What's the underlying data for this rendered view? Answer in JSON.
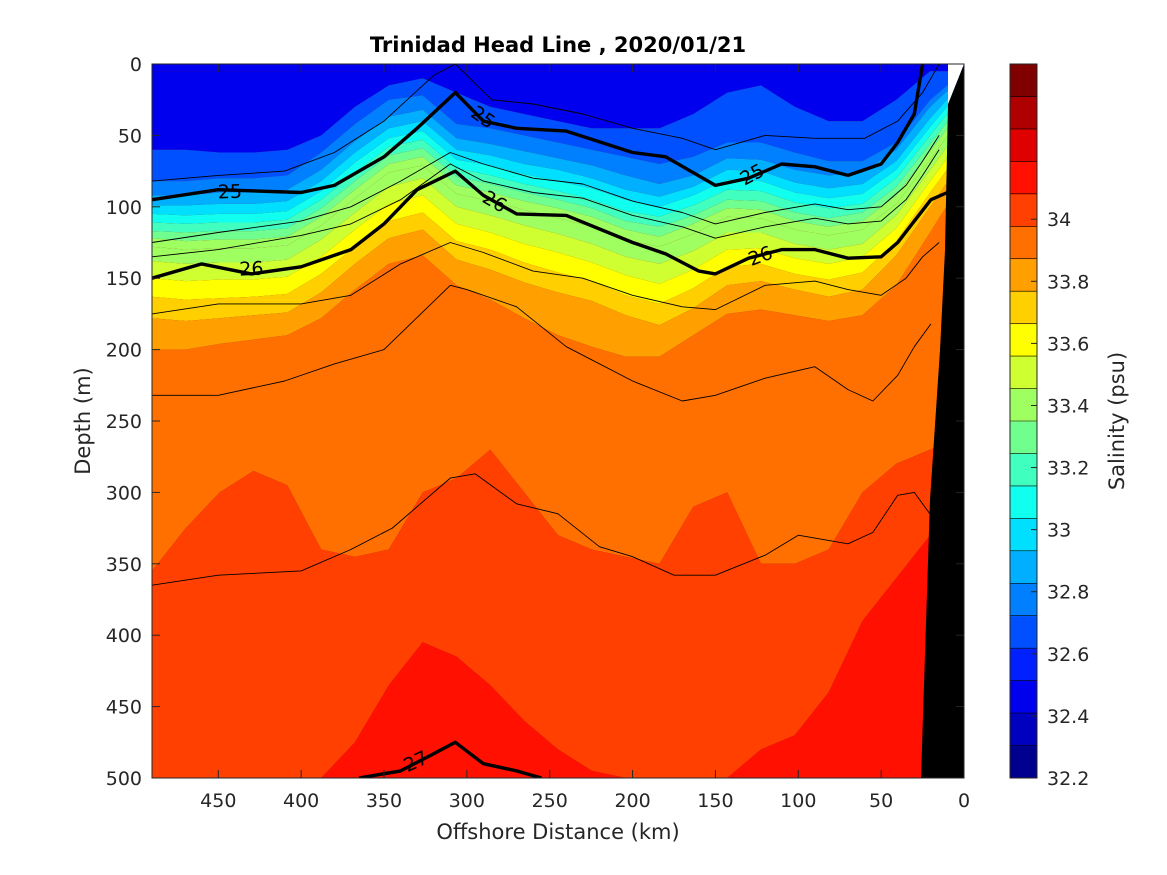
{
  "chart_data": {
    "type": "heatmap",
    "title": "Trinidad Head Line , 2020/01/21",
    "xlabel": "Offshore Distance (km)",
    "ylabel": "Depth (m)",
    "colorbar_label": "Salinity (psu)",
    "x_reversed": true,
    "xlim": [
      490,
      0
    ],
    "ylim": [
      0,
      500
    ],
    "y_reversed": true,
    "x_ticks": [
      450,
      400,
      350,
      300,
      250,
      200,
      150,
      100,
      50,
      0
    ],
    "y_ticks": [
      0,
      50,
      100,
      150,
      200,
      250,
      300,
      350,
      400,
      450,
      500
    ],
    "colorbar": {
      "range": [
        32.2,
        34.5
      ],
      "ticks": [
        "32.2",
        "32.4",
        "32.6",
        "32.8",
        "33",
        "33.2",
        "33.4",
        "33.6",
        "33.8",
        "34"
      ],
      "colors": [
        "#00008f",
        "#0000bf",
        "#0000ef",
        "#0020ff",
        "#0050ff",
        "#0080ff",
        "#00afff",
        "#00dfff",
        "#10ffef",
        "#40ffbf",
        "#70ff8f",
        "#9fff60",
        "#cfff30",
        "#ffff00",
        "#ffcf00",
        "#ff9f00",
        "#ff7000",
        "#ff4000",
        "#ff1000",
        "#df0000",
        "#af0000",
        "#800000"
      ]
    },
    "salinity_levels": [
      {
        "salinity": 32.5,
        "depth": [
          5,
          5,
          5,
          5,
          5,
          5,
          5,
          5,
          5,
          5,
          5,
          5,
          5,
          5,
          5,
          5,
          5,
          5,
          5,
          5,
          5,
          5,
          5,
          5,
          5
        ]
      },
      {
        "salinity": 32.65,
        "depth": [
          60,
          60,
          62,
          62,
          60,
          50,
          30,
          15,
          10,
          20,
          30,
          35,
          40,
          45,
          45,
          45,
          35,
          20,
          15,
          30,
          40,
          40,
          25,
          5,
          5
        ]
      },
      {
        "salinity": 32.75,
        "depth": [
          82,
          82,
          80,
          80,
          78,
          62,
          42,
          25,
          22,
          42,
          45,
          50,
          55,
          60,
          65,
          70,
          65,
          55,
          55,
          62,
          68,
          68,
          55,
          25,
          5
        ]
      },
      {
        "salinity": 32.85,
        "depth": [
          92,
          92,
          90,
          90,
          88,
          74,
          54,
          37,
          32,
          52,
          56,
          61,
          66,
          71,
          78,
          84,
          78,
          66,
          67,
          74,
          78,
          76,
          60,
          30,
          8
        ]
      },
      {
        "salinity": 32.95,
        "depth": [
          99,
          99,
          98,
          98,
          96,
          82,
          62,
          45,
          40,
          60,
          64,
          70,
          74,
          80,
          88,
          93,
          86,
          74,
          75,
          83,
          87,
          84,
          68,
          38,
          12
        ]
      },
      {
        "salinity": 33.05,
        "depth": [
          105,
          106,
          105,
          105,
          103,
          89,
          69,
          52,
          47,
          67,
          71,
          77,
          82,
          87,
          95,
          100,
          92,
          81,
          82,
          90,
          94,
          91,
          74,
          44,
          16
        ]
      },
      {
        "salinity": 33.15,
        "depth": [
          111,
          112,
          111,
          111,
          109,
          95,
          76,
          58,
          53,
          73,
          78,
          84,
          89,
          95,
          103,
          107,
          99,
          88,
          89,
          97,
          101,
          98,
          80,
          50,
          20
        ]
      },
      {
        "salinity": 33.25,
        "depth": [
          117,
          118,
          117,
          117,
          115,
          101,
          82,
          64,
          59,
          79,
          84,
          90,
          95,
          101,
          110,
          114,
          106,
          95,
          96,
          104,
          108,
          104,
          86,
          56,
          25
        ]
      },
      {
        "salinity": 33.35,
        "depth": [
          122,
          124,
          123,
          123,
          121,
          107,
          88,
          70,
          65,
          85,
          90,
          96,
          101,
          107,
          116,
          121,
          112,
          101,
          102,
          110,
          114,
          110,
          92,
          61,
          30
        ]
      },
      {
        "salinity": 33.45,
        "depth": [
          128,
          130,
          129,
          129,
          127,
          113,
          94,
          76,
          71,
          91,
          96,
          102,
          108,
          114,
          123,
          128,
          119,
          107,
          108,
          116,
          120,
          116,
          98,
          67,
          35
        ]
      },
      {
        "salinity": 33.55,
        "depth": [
          138,
          140,
          139,
          139,
          137,
          123,
          104,
          86,
          80,
          100,
          106,
          113,
          119,
          126,
          135,
          140,
          131,
          118,
          118,
          126,
          130,
          126,
          106,
          74,
          42
        ]
      },
      {
        "salinity": 33.65,
        "depth": [
          150,
          152,
          151,
          151,
          149,
          135,
          116,
          98,
          92,
          112,
          118,
          126,
          132,
          139,
          148,
          154,
          144,
          130,
          129,
          136,
          140,
          135,
          115,
          82,
          50
        ]
      },
      {
        "salinity": 33.75,
        "depth": [
          163,
          165,
          164,
          163,
          161,
          147,
          128,
          110,
          104,
          124,
          130,
          139,
          146,
          152,
          162,
          168,
          157,
          142,
          140,
          147,
          151,
          146,
          124,
          90,
          58
        ]
      },
      {
        "salinity": 33.85,
        "depth": [
          178,
          180,
          178,
          176,
          174,
          160,
          140,
          122,
          116,
          137,
          144,
          153,
          160,
          166,
          176,
          183,
          171,
          155,
          152,
          158,
          163,
          158,
          134,
          100,
          66
        ]
      },
      {
        "salinity": 33.95,
        "depth": [
          200,
          200,
          196,
          193,
          190,
          178,
          158,
          140,
          134,
          155,
          165,
          178,
          190,
          198,
          205,
          205,
          190,
          175,
          172,
          176,
          180,
          176,
          155,
          118,
          80
        ]
      },
      {
        "salinity": 34.05,
        "depth": [
          355,
          325,
          300,
          285,
          295,
          340,
          345,
          340,
          300,
          290,
          270,
          300,
          330,
          340,
          345,
          350,
          310,
          300,
          350,
          350,
          340,
          300,
          280,
          270,
          260
        ]
      },
      {
        "salinity": 34.15,
        "depth": [
          500,
          500,
          500,
          500,
          500,
          500,
          475,
          435,
          405,
          415,
          435,
          460,
          480,
          495,
          500,
          500,
          500,
          500,
          480,
          470,
          440,
          390,
          360,
          330,
          320
        ]
      },
      {
        "salinity": 34.25,
        "depth": [
          520,
          520,
          520,
          520,
          520,
          520,
          520,
          520,
          520,
          520,
          520,
          520,
          520,
          520,
          520,
          520,
          520,
          520,
          520,
          520,
          520,
          520,
          520,
          520,
          520
        ]
      }
    ],
    "density_contours": [
      {
        "label": "25",
        "bold": true,
        "distance": [
          490,
          450,
          400,
          380,
          350,
          330,
          307,
          290,
          270,
          240,
          200,
          180,
          150,
          130,
          110,
          90,
          70,
          50,
          40,
          30,
          25
        ],
        "depth": [
          95,
          88,
          90,
          85,
          65,
          45,
          20,
          40,
          45,
          47,
          62,
          65,
          85,
          80,
          70,
          72,
          78,
          70,
          55,
          35,
          0
        ]
      },
      {
        "label": "26",
        "bold": true,
        "distance": [
          490,
          460,
          430,
          400,
          370,
          350,
          330,
          307,
          290,
          270,
          240,
          200,
          180,
          160,
          150,
          130,
          110,
          90,
          70,
          50,
          40,
          30,
          20,
          10
        ],
        "depth": [
          150,
          140,
          147,
          142,
          130,
          112,
          88,
          75,
          92,
          105,
          106,
          125,
          133,
          145,
          147,
          136,
          130,
          130,
          136,
          135,
          125,
          110,
          95,
          90
        ]
      },
      {
        "label": "27",
        "bold": true,
        "distance": [
          365,
          340,
          320,
          307,
          290,
          270,
          255
        ],
        "depth": [
          500,
          495,
          483,
          475,
          490,
          495,
          500
        ]
      },
      {
        "label": "",
        "bold": false,
        "distance": [
          490,
          450,
          410,
          380,
          350,
          320,
          307,
          285,
          260,
          230,
          200,
          170,
          150,
          120,
          90,
          60,
          40,
          25,
          15
        ],
        "depth": [
          82,
          78,
          75,
          62,
          40,
          8,
          0,
          25,
          28,
          35,
          45,
          52,
          60,
          50,
          52,
          52,
          40,
          20,
          0
        ]
      },
      {
        "label": "",
        "bold": false,
        "distance": [
          490,
          450,
          400,
          370,
          340,
          310,
          290,
          260,
          230,
          200,
          170,
          150,
          120,
          90,
          70,
          50,
          35,
          25,
          15
        ],
        "depth": [
          125,
          118,
          110,
          100,
          82,
          62,
          70,
          80,
          84,
          96,
          104,
          112,
          104,
          98,
          102,
          100,
          85,
          68,
          50
        ]
      },
      {
        "label": "",
        "bold": false,
        "distance": [
          490,
          450,
          400,
          370,
          340,
          310,
          290,
          260,
          230,
          200,
          170,
          150,
          120,
          90,
          70,
          50,
          35,
          25,
          15
        ],
        "depth": [
          135,
          130,
          120,
          112,
          95,
          70,
          82,
          90,
          94,
          106,
          114,
          122,
          114,
          108,
          112,
          110,
          95,
          78,
          60
        ]
      },
      {
        "label": "",
        "bold": false,
        "distance": [
          490,
          450,
          400,
          370,
          340,
          310,
          290,
          260,
          230,
          200,
          170,
          150,
          120,
          90,
          70,
          50,
          35,
          25,
          15
        ],
        "depth": [
          175,
          168,
          168,
          162,
          140,
          125,
          132,
          145,
          150,
          162,
          170,
          172,
          155,
          152,
          158,
          162,
          150,
          135,
          125
        ]
      },
      {
        "label": "",
        "bold": false,
        "distance": [
          490,
          450,
          410,
          380,
          350,
          310,
          300,
          270,
          240,
          200,
          170,
          150,
          120,
          90,
          70,
          55,
          40,
          30,
          20
        ],
        "depth": [
          232,
          232,
          222,
          210,
          200,
          155,
          158,
          170,
          198,
          222,
          236,
          232,
          220,
          212,
          228,
          236,
          218,
          198,
          182
        ]
      },
      {
        "label": "",
        "bold": false,
        "distance": [
          490,
          450,
          400,
          370,
          345,
          310,
          295,
          270,
          245,
          220,
          200,
          175,
          150,
          120,
          100,
          70,
          55,
          40,
          30,
          20
        ],
        "depth": [
          365,
          358,
          355,
          340,
          325,
          290,
          287,
          308,
          315,
          338,
          345,
          358,
          358,
          344,
          330,
          336,
          328,
          302,
          300,
          316
        ]
      }
    ]
  }
}
